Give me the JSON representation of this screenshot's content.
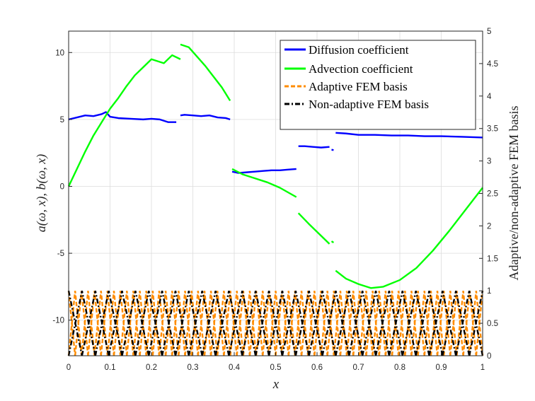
{
  "chart_data": {
    "type": "line",
    "xlabel": "x",
    "ylabel_left": "a(ω, x),  b(ω, x)",
    "ylabel_right": "Adaptive/non-adaptive FEM basis",
    "xlim": [
      0,
      1
    ],
    "ylim_left": [
      -12.658,
      11.6
    ],
    "ylim_right": [
      0,
      5
    ],
    "x_ticks": [
      "0",
      "0.1",
      "0.2",
      "0.3",
      "0.4",
      "0.5",
      "0.6",
      "0.7",
      "0.8",
      "0.9",
      "1"
    ],
    "y_ticks_left": [
      "-10",
      "-5",
      "0",
      "5",
      "10"
    ],
    "y_ticks_right": [
      "0",
      "0.5",
      "1",
      "1.5",
      "2",
      "2.5",
      "3",
      "3.5",
      "4",
      "4.5",
      "5"
    ],
    "grid": true,
    "legend_position": "top-right",
    "series": [
      {
        "name": "Diffusion coefficient",
        "axis": "left",
        "color": "#0000ff",
        "style": "solid",
        "segments": [
          [
            [
              0,
              5.0
            ],
            [
              0.02,
              5.15
            ],
            [
              0.04,
              5.3
            ],
            [
              0.06,
              5.25
            ],
            [
              0.08,
              5.4
            ],
            [
              0.09,
              5.55
            ],
            [
              0.1,
              5.2
            ],
            [
              0.12,
              5.1
            ],
            [
              0.15,
              5.05
            ],
            [
              0.18,
              5.0
            ],
            [
              0.2,
              5.05
            ],
            [
              0.22,
              5.0
            ],
            [
              0.24,
              4.8
            ],
            [
              0.26,
              4.8
            ]
          ],
          [
            [
              0.27,
              5.3
            ],
            [
              0.28,
              5.35
            ],
            [
              0.3,
              5.3
            ],
            [
              0.32,
              5.25
            ],
            [
              0.34,
              5.3
            ],
            [
              0.36,
              5.15
            ],
            [
              0.38,
              5.1
            ],
            [
              0.39,
              5.0
            ]
          ],
          [
            [
              0.395,
              1.1
            ],
            [
              0.41,
              1.0
            ],
            [
              0.43,
              1.05
            ],
            [
              0.45,
              1.1
            ],
            [
              0.47,
              1.15
            ],
            [
              0.49,
              1.2
            ],
            [
              0.51,
              1.2
            ],
            [
              0.53,
              1.25
            ],
            [
              0.55,
              1.3
            ]
          ],
          [
            [
              0.555,
              3.0
            ],
            [
              0.57,
              3.0
            ],
            [
              0.59,
              2.95
            ],
            [
              0.61,
              2.9
            ],
            [
              0.63,
              2.95
            ]
          ],
          [
            [
              0.635,
              2.75
            ],
            [
              0.64,
              2.7
            ]
          ],
          [
            [
              0.645,
              4.0
            ],
            [
              0.67,
              3.95
            ],
            [
              0.7,
              3.85
            ],
            [
              0.74,
              3.85
            ],
            [
              0.78,
              3.8
            ],
            [
              0.82,
              3.8
            ],
            [
              0.86,
              3.75
            ],
            [
              0.9,
              3.75
            ],
            [
              0.95,
              3.7
            ],
            [
              1.0,
              3.65
            ]
          ]
        ]
      },
      {
        "name": "Advection coefficient",
        "axis": "left",
        "color": "#00ff00",
        "style": "solid",
        "segments": [
          [
            [
              0,
              0
            ],
            [
              0.02,
              1.3
            ],
            [
              0.04,
              2.6
            ],
            [
              0.06,
              3.8
            ],
            [
              0.08,
              4.8
            ],
            [
              0.1,
              5.8
            ],
            [
              0.12,
              6.6
            ],
            [
              0.14,
              7.5
            ],
            [
              0.16,
              8.3
            ],
            [
              0.18,
              8.9
            ],
            [
              0.2,
              9.5
            ],
            [
              0.22,
              9.3
            ],
            [
              0.23,
              9.2
            ],
            [
              0.25,
              9.8
            ],
            [
              0.27,
              9.5
            ]
          ],
          [
            [
              0.27,
              10.6
            ],
            [
              0.29,
              10.4
            ],
            [
              0.31,
              9.7
            ],
            [
              0.33,
              9.0
            ],
            [
              0.35,
              8.2
            ],
            [
              0.37,
              7.4
            ],
            [
              0.39,
              6.4
            ]
          ],
          [
            [
              0.395,
              1.3
            ],
            [
              0.42,
              0.9
            ],
            [
              0.45,
              0.6
            ],
            [
              0.48,
              0.3
            ],
            [
              0.51,
              -0.1
            ],
            [
              0.55,
              -0.8
            ]
          ],
          [
            [
              0.555,
              -2.0
            ],
            [
              0.58,
              -2.8
            ],
            [
              0.61,
              -3.7
            ],
            [
              0.63,
              -4.3
            ]
          ],
          [
            [
              0.635,
              -4.1
            ],
            [
              0.64,
              -4.2
            ]
          ],
          [
            [
              0.645,
              -6.3
            ],
            [
              0.67,
              -6.9
            ],
            [
              0.7,
              -7.3
            ],
            [
              0.73,
              -7.6
            ],
            [
              0.76,
              -7.5
            ],
            [
              0.8,
              -7.0
            ],
            [
              0.84,
              -6.1
            ],
            [
              0.88,
              -4.8
            ],
            [
              0.92,
              -3.3
            ],
            [
              0.96,
              -1.7
            ],
            [
              1.0,
              -0.1
            ]
          ]
        ]
      },
      {
        "name": "Adaptive FEM basis",
        "axis": "right",
        "color": "#ff8c00",
        "style": "dashed",
        "nodes_description": "hat functions, values between 0 and 1",
        "node_count": 64
      },
      {
        "name": "Non-adaptive FEM basis",
        "axis": "right",
        "color": "#000000",
        "style": "dash-dot",
        "node_count": 31
      }
    ]
  },
  "legend": {
    "items": [
      {
        "label": "Diffusion coefficient",
        "color": "#0000ff",
        "style": "solid"
      },
      {
        "label": "Advection coefficient",
        "color": "#00ff00",
        "style": "solid"
      },
      {
        "label": "Adaptive FEM basis",
        "color": "#ff8c00",
        "style": "dashed"
      },
      {
        "label": "Non-adaptive FEM basis",
        "color": "#000000",
        "style": "dashdot"
      }
    ]
  }
}
